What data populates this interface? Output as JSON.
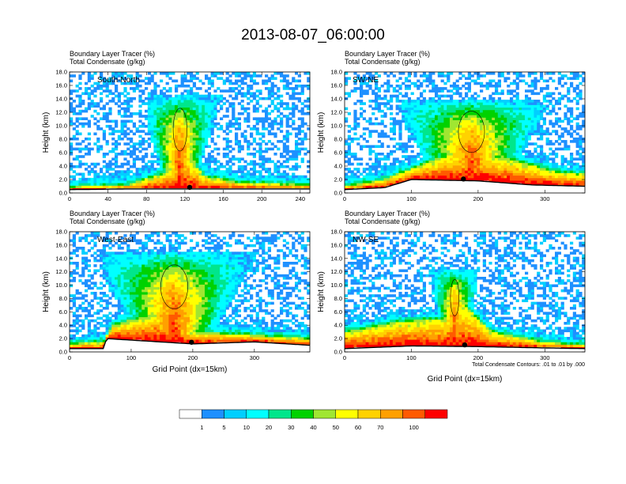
{
  "figure": {
    "title": "2013-08-07_06:00:00",
    "header_line1": "Boundary Layer Tracer   (%)",
    "header_line2": "Total Condensate   (g/kg)",
    "contour_note": "Total Condensate Contours: .01 to .01 by .000",
    "xlabel": "Grid Point (dx=15km)",
    "ylabel": "Height (km)"
  },
  "colorbar": {
    "colors": [
      "#ffffff",
      "#1e90ff",
      "#00cfff",
      "#00ffff",
      "#00e68c",
      "#00d200",
      "#a0e632",
      "#ffff00",
      "#ffd200",
      "#ffa000",
      "#ff5a00",
      "#ff0000"
    ],
    "levels": [
      "1",
      "5",
      "10",
      "20",
      "30",
      "40",
      "50",
      "60",
      "70",
      "100"
    ]
  },
  "chart_data": [
    {
      "type": "heatmap",
      "panel": "South-North",
      "label": "South-North",
      "ylim": [
        0,
        18
      ],
      "xlim": [
        0,
        250
      ],
      "yticks": [
        "0.0",
        "2.0",
        "4.0",
        "6.0",
        "8.0",
        "10.0",
        "12.0",
        "14.0",
        "16.0",
        "18.0"
      ],
      "xticks": [
        {
          "v": 0,
          "t": "0"
        },
        {
          "v": 40,
          "t": "40"
        },
        {
          "v": 80,
          "t": "80"
        },
        {
          "v": 120,
          "t": "120"
        },
        {
          "v": 160,
          "t": "160"
        },
        {
          "v": 200,
          "t": "200"
        },
        {
          "v": 240,
          "t": "240"
        }
      ],
      "marker_x": 125,
      "terrain": [
        [
          0,
          0.5
        ],
        [
          60,
          0.6
        ],
        [
          120,
          0.6
        ],
        [
          250,
          0.6
        ]
      ],
      "pbl": [
        [
          0,
          0.9
        ],
        [
          60,
          1.2
        ],
        [
          100,
          3.0
        ],
        [
          120,
          6.0
        ],
        [
          140,
          2.5
        ],
        [
          180,
          1.5
        ],
        [
          250,
          1.2
        ]
      ],
      "plume": {
        "x0": 80,
        "x1": 170,
        "top": 14.5,
        "axis": 115,
        "rise": 1.2
      }
    },
    {
      "type": "heatmap",
      "panel": "SW-NE",
      "label": "SW-NE",
      "ylim": [
        0,
        18
      ],
      "xlim": [
        0,
        360
      ],
      "yticks": [
        "0.0",
        "2.0",
        "4.0",
        "6.0",
        "8.0",
        "10.0",
        "12.0",
        "14.0",
        "16.0",
        "18.0"
      ],
      "xticks": [
        {
          "v": 0,
          "t": "0"
        },
        {
          "v": 100,
          "t": "100"
        },
        {
          "v": 200,
          "t": "200"
        },
        {
          "v": 300,
          "t": "300"
        }
      ],
      "marker_x": 178,
      "terrain": [
        [
          0,
          0.5
        ],
        [
          60,
          0.8
        ],
        [
          100,
          2.0
        ],
        [
          200,
          1.8
        ],
        [
          280,
          1.2
        ],
        [
          360,
          1.0
        ]
      ],
      "pbl": [
        [
          0,
          1.0
        ],
        [
          60,
          2.0
        ],
        [
          110,
          4.0
        ],
        [
          180,
          6.5
        ],
        [
          250,
          5.0
        ],
        [
          320,
          3.0
        ],
        [
          360,
          2.8
        ]
      ],
      "plume": {
        "x0": 85,
        "x1": 330,
        "top": 14.0,
        "axis": 190,
        "rise": 1.0
      }
    },
    {
      "type": "heatmap",
      "panel": "West-East",
      "label": "West-East",
      "ylim": [
        0,
        18
      ],
      "xlim": [
        0,
        390
      ],
      "yticks": [
        "0.0",
        "2.0",
        "4.0",
        "6.0",
        "8.0",
        "10.0",
        "12.0",
        "14.0",
        "16.0",
        "18.0"
      ],
      "xticks": [
        {
          "v": 0,
          "t": "0"
        },
        {
          "v": 100,
          "t": "100"
        },
        {
          "v": 200,
          "t": "200"
        },
        {
          "v": 300,
          "t": "300"
        }
      ],
      "marker_x": 198,
      "terrain": [
        [
          0,
          0.5
        ],
        [
          55,
          0.5
        ],
        [
          60,
          2.0
        ],
        [
          200,
          1.2
        ],
        [
          300,
          1.5
        ],
        [
          390,
          1.0
        ]
      ],
      "pbl": [
        [
          0,
          1.2
        ],
        [
          55,
          1.5
        ],
        [
          70,
          4.0
        ],
        [
          150,
          6.0
        ],
        [
          200,
          3.0
        ],
        [
          300,
          2.5
        ],
        [
          390,
          2.0
        ]
      ],
      "plume": {
        "x0": 55,
        "x1": 330,
        "top": 15.0,
        "axis": 170,
        "rise": 1.0
      }
    },
    {
      "type": "heatmap",
      "panel": "NW-SE",
      "label": "NW-SE",
      "ylim": [
        0,
        18
      ],
      "xlim": [
        0,
        360
      ],
      "yticks": [
        "0.0",
        "2.0",
        "4.0",
        "6.0",
        "8.0",
        "10.0",
        "12.0",
        "14.0",
        "16.0",
        "18.0"
      ],
      "xticks": [
        {
          "v": 0,
          "t": "0"
        },
        {
          "v": 100,
          "t": "100"
        },
        {
          "v": 200,
          "t": "200"
        },
        {
          "v": 300,
          "t": "300"
        }
      ],
      "marker_x": 180,
      "terrain": [
        [
          0,
          0.5
        ],
        [
          100,
          0.9
        ],
        [
          200,
          0.8
        ],
        [
          300,
          0.6
        ],
        [
          360,
          0.5
        ]
      ],
      "pbl": [
        [
          0,
          3.0
        ],
        [
          80,
          4.5
        ],
        [
          150,
          5.0
        ],
        [
          180,
          7.0
        ],
        [
          220,
          3.0
        ],
        [
          300,
          1.5
        ],
        [
          360,
          1.0
        ]
      ],
      "plume": {
        "x0": 120,
        "x1": 200,
        "top": 12.5,
        "axis": 165,
        "rise": 1.0
      }
    }
  ]
}
